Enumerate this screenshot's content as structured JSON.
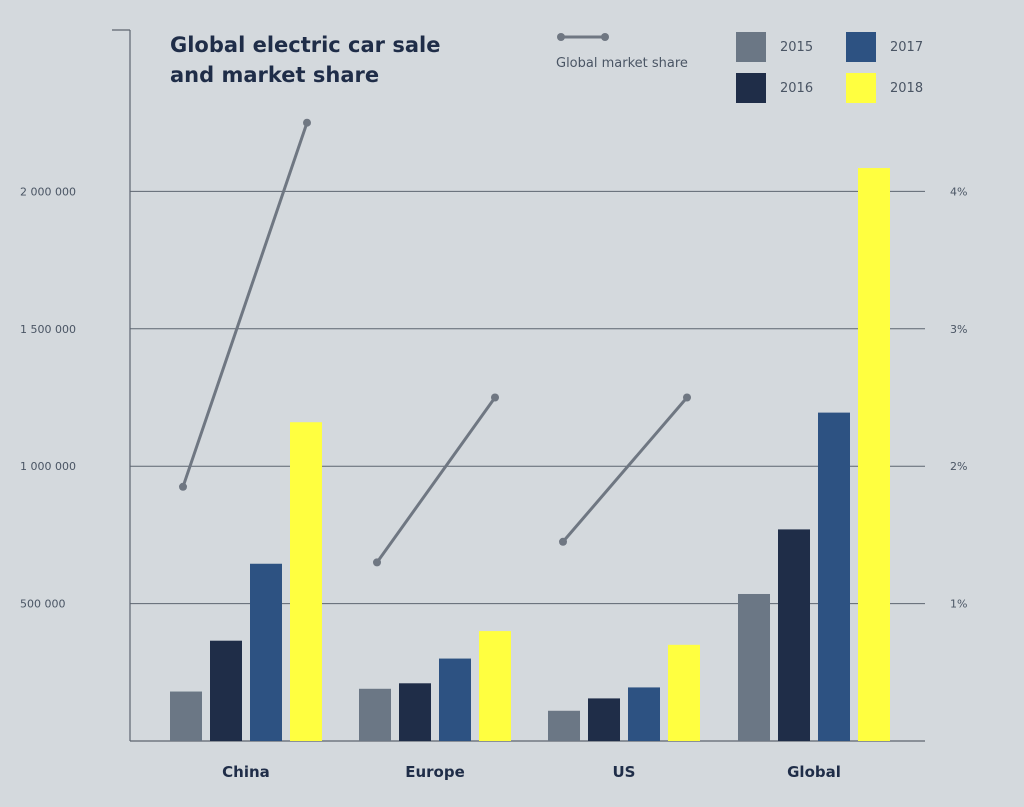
{
  "colors": {
    "background": "#d4d9dd",
    "line": "#6f7782",
    "grid": "#5d6570",
    "axis_text": "#4a5564",
    "title": "#1f2d48",
    "category_text": "#1f2d48"
  },
  "chart_data": {
    "type": "bar",
    "title": "Global electric car sale and market share",
    "categories": [
      "China",
      "Europe",
      "US",
      "Global"
    ],
    "series": [
      {
        "name": "2015",
        "color": "#6b7785",
        "values": [
          180000,
          190000,
          110000,
          535000
        ]
      },
      {
        "name": "2016",
        "color": "#1f2d48",
        "values": [
          365000,
          210000,
          155000,
          770000
        ]
      },
      {
        "name": "2017",
        "color": "#2d5282",
        "values": [
          645000,
          300000,
          195000,
          1195000
        ]
      },
      {
        "name": "2018",
        "color": "#ffff40",
        "values": [
          1160000,
          400000,
          350000,
          2085000
        ]
      }
    ],
    "line_series": {
      "name": "Global market share",
      "unit": "%",
      "values": [
        [
          1.85,
          4.5
        ],
        [
          1.3,
          2.5
        ],
        [
          1.45,
          2.5
        ]
      ],
      "categories": [
        "China",
        "Europe",
        "US"
      ]
    },
    "y_left": {
      "ticks": [
        500000,
        1000000,
        1500000,
        2000000
      ],
      "tick_labels": [
        "500 000",
        "1 000 000",
        "1 500 000",
        "2 000 000"
      ],
      "lim": [
        0,
        2500000
      ]
    },
    "y_right": {
      "ticks": [
        1,
        2,
        3,
        4
      ],
      "tick_labels": [
        "1%",
        "2%",
        "3%",
        "4%"
      ],
      "lim": [
        0,
        5
      ]
    },
    "grid": true,
    "legend": "top-right"
  }
}
